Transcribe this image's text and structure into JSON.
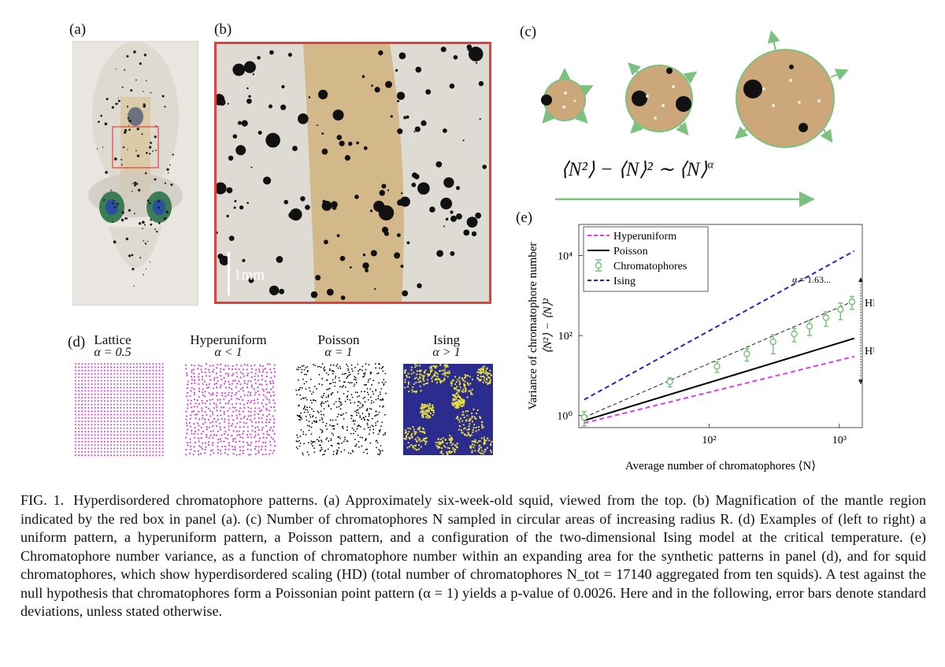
{
  "panels": {
    "a": {
      "label": "(a)"
    },
    "b": {
      "label": "(b)",
      "scale_bar": "1mm"
    },
    "c": {
      "label": "(c)"
    },
    "d": {
      "label": "(d)",
      "patterns": [
        {
          "name": "Lattice",
          "alpha": "α = 0.5",
          "color": "#d63fd6"
        },
        {
          "name": "Hyperuniform",
          "alpha": "α < 1",
          "color": "#d63fd6"
        },
        {
          "name": "Poisson",
          "alpha": "α = 1",
          "color": "#000000"
        },
        {
          "name": "Ising",
          "alpha": "α > 1",
          "color": "#2c2c8f"
        }
      ]
    },
    "e": {
      "label": "(e)"
    }
  },
  "chart_data": {
    "type": "line",
    "x_scale": "log",
    "y_scale": "log",
    "xlabel": "Average number of chromatophores ⟨N⟩",
    "ylabel": "Variance of chromatophore number",
    "ylabel2": "⟨N²⟩ − ⟨N⟩²",
    "xlim": [
      10,
      1500
    ],
    "ylim": [
      0.5,
      60000
    ],
    "x_ticks": [
      "10²",
      "10³"
    ],
    "y_ticks": [
      "10⁰",
      "10²",
      "10⁴"
    ],
    "legend_position": "top-left",
    "series": [
      {
        "name": "Hyperuniform",
        "style": "dashed",
        "color": "#e040e0",
        "x": [
          11,
          1300
        ],
        "y": [
          0.65,
          30
        ]
      },
      {
        "name": "Poisson",
        "style": "solid",
        "color": "#000000",
        "x": [
          11,
          1300
        ],
        "y": [
          0.75,
          85
        ]
      },
      {
        "name": "Chromatophores",
        "style": "markers",
        "color": "#7cc17f",
        "x": [
          11,
          50,
          115,
          195,
          310,
          450,
          590,
          790,
          1020,
          1250
        ],
        "y": [
          0.9,
          7,
          17,
          35,
          70,
          110,
          170,
          280,
          450,
          700
        ],
        "err": [
          0.35,
          1.8,
          5,
          12,
          35,
          40,
          70,
          110,
          200,
          250
        ]
      },
      {
        "name": "Ising",
        "style": "dashed",
        "color": "#1c2bbd",
        "x": [
          11,
          1300
        ],
        "y": [
          2.5,
          13000
        ]
      }
    ],
    "annotations": [
      {
        "text": "α = 1.63..."
      },
      {
        "text": "HD"
      },
      {
        "text": "HU"
      }
    ]
  },
  "equation_c": "⟨N²⟩ − ⟨N⟩² ∼ ⟨N⟩",
  "equation_c_exp": "α",
  "caption": {
    "number": "FIG. 1.",
    "text": "Hyperdisordered chromatophore patterns. (a) Approximately six-week-old squid, viewed from the top. (b) Magnification of the mantle region indicated by the red box in panel (a). (c) Number of chromatophores N sampled in circular areas of increasing radius R. (d) Examples of (left to right) a uniform pattern, a hyperuniform pattern, a Poisson pattern, and a configuration of the two-dimensional Ising model at the critical temperature. (e) Chromatophore number variance, as a function of chromatophore number within an expanding area for the synthetic patterns in panel (d), and for squid chromatophores, which show hyperdisordered scaling (HD) (total number of chromatophores N_tot = 17140 aggregated from ten squids). A test against the null hypothesis that chromatophores form a Poissonian point pattern (α = 1) yields a p-value of 0.0026. Here and in the following, error bars denote standard deviations, unless stated otherwise."
  }
}
